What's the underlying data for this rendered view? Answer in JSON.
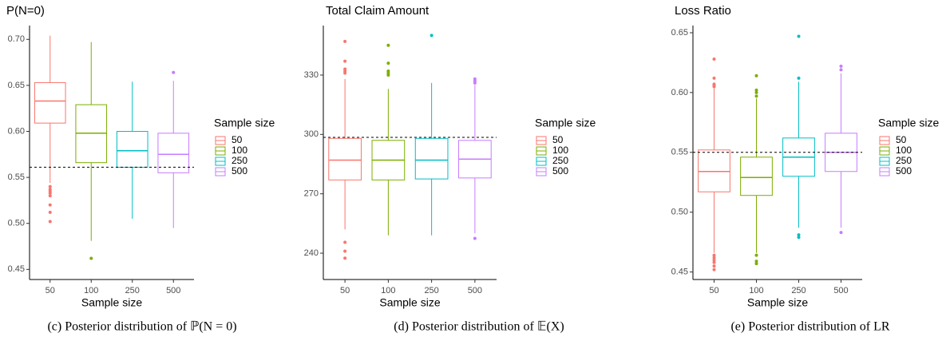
{
  "chart_data": [
    {
      "type": "box",
      "title": "P(N=0)",
      "xlabel": "Sample size",
      "legend_title": "Sample size",
      "categories": [
        "50",
        "100",
        "250",
        "500"
      ],
      "colors": [
        "#F8766D",
        "#7CAE00",
        "#00BFC4",
        "#C77CFF"
      ],
      "boxes": [
        {
          "whislo": 0.544,
          "q1": 0.609,
          "med": 0.633,
          "q3": 0.653,
          "whishi": 0.704,
          "fliers": [
            0.54,
            0.537,
            0.535,
            0.533,
            0.53,
            0.52,
            0.512,
            0.502
          ]
        },
        {
          "whislo": 0.481,
          "q1": 0.566,
          "med": 0.598,
          "q3": 0.629,
          "whishi": 0.697,
          "fliers": [
            0.462
          ]
        },
        {
          "whislo": 0.505,
          "q1": 0.561,
          "med": 0.579,
          "q3": 0.6,
          "whishi": 0.654,
          "fliers": []
        },
        {
          "whislo": 0.495,
          "q1": 0.555,
          "med": 0.575,
          "q3": 0.598,
          "whishi": 0.655,
          "fliers": [
            0.664
          ]
        }
      ],
      "hline": 0.561,
      "ylim": [
        0.439,
        0.715
      ],
      "yticks": [
        0.45,
        {
          "value": 0.5,
          "label": "0.50"
        },
        0.55,
        {
          "value": 0.6,
          "label": "0.60"
        },
        0.65,
        {
          "value": 0.7,
          "label": "0.70"
        }
      ],
      "caption": "(c) Posterior distribution of ℙ(N = 0)"
    },
    {
      "type": "box",
      "title": "Total Claim Amount",
      "xlabel": "Sample size",
      "legend_title": "Sample size",
      "categories": [
        "50",
        "100",
        "250",
        "500"
      ],
      "colors": [
        "#F8766D",
        "#7CAE00",
        "#00BFC4",
        "#C77CFF"
      ],
      "boxes": [
        {
          "whislo": 252,
          "q1": 277,
          "med": 287,
          "q3": 298,
          "whishi": 328,
          "fliers": [
            245.5,
            241,
            237.5,
            331,
            332,
            333,
            337,
            347
          ]
        },
        {
          "whislo": 249,
          "q1": 277,
          "med": 287,
          "q3": 297,
          "whishi": 323,
          "fliers": [
            330,
            331,
            332,
            336,
            345
          ]
        },
        {
          "whislo": 249,
          "q1": 277.5,
          "med": 287,
          "q3": 298,
          "whishi": 326,
          "fliers": [
            350
          ]
        },
        {
          "whislo": 250,
          "q1": 278,
          "med": 287.5,
          "q3": 297,
          "whishi": 325,
          "fliers": [
            247.5,
            326,
            327,
            328
          ]
        }
      ],
      "hline": 298.5,
      "ylim": [
        226.7,
        355
      ],
      "yticks": [
        240,
        270,
        300,
        330
      ],
      "caption": "(d) Posterior distribution of 𝔼(X)"
    },
    {
      "type": "box",
      "title": "Loss Ratio",
      "xlabel": "Sample size",
      "legend_title": "Sample size",
      "categories": [
        "50",
        "100",
        "250",
        "500"
      ],
      "colors": [
        "#F8766D",
        "#7CAE00",
        "#00BFC4",
        "#C77CFF"
      ],
      "boxes": [
        {
          "whislo": 0.466,
          "q1": 0.517,
          "med": 0.534,
          "q3": 0.552,
          "whishi": 0.604,
          "fliers": [
            0.605,
            0.606,
            0.607,
            0.612,
            0.628,
            0.464,
            0.462,
            0.46,
            0.458,
            0.455,
            0.452
          ]
        },
        {
          "whislo": 0.466,
          "q1": 0.514,
          "med": 0.529,
          "q3": 0.546,
          "whishi": 0.595,
          "fliers": [
            0.597,
            0.6,
            0.602,
            0.614,
            0.464,
            0.459,
            0.457
          ]
        },
        {
          "whislo": 0.487,
          "q1": 0.53,
          "med": 0.546,
          "q3": 0.562,
          "whishi": 0.609,
          "fliers": [
            0.612,
            0.647,
            0.481,
            0.479
          ]
        },
        {
          "whislo": 0.487,
          "q1": 0.534,
          "med": 0.55,
          "q3": 0.566,
          "whishi": 0.616,
          "fliers": [
            0.619,
            0.622,
            0.483
          ]
        }
      ],
      "hline": 0.55,
      "ylim": [
        0.4437,
        0.656
      ],
      "yticks": [
        0.45,
        {
          "value": 0.5,
          "label": "0.50"
        },
        0.55,
        {
          "value": 0.6,
          "label": "0.60"
        },
        0.65
      ],
      "caption": "(e) Posterior distribution of LR"
    }
  ]
}
